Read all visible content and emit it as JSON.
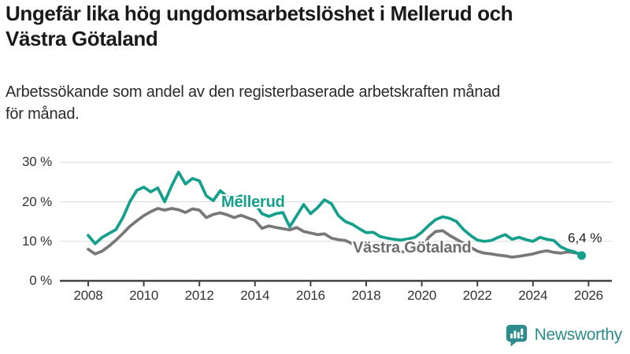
{
  "header": {
    "title_line1": "Ungefär lika hög ungdomsarbetslöshet i Mellerud och",
    "title_line2": "Västra Götaland",
    "subtitle_line1": "Arbetssökande som andel av den registerbaserade arbetskraften månad",
    "subtitle_line2": "för månad."
  },
  "chart_data": {
    "type": "line",
    "unit": "%",
    "grid": true,
    "x_start_year": 2008,
    "x_step_years": 0.25,
    "ylim": [
      0,
      32
    ],
    "y_axis_ticks": [
      {
        "v": 0,
        "label": "0 %"
      },
      {
        "v": 10,
        "label": "10 %"
      },
      {
        "v": 20,
        "label": "20 %"
      },
      {
        "v": 30,
        "label": "30 %"
      }
    ],
    "x_axis_ticks": [
      {
        "v": 2008,
        "label": "2008"
      },
      {
        "v": 2010,
        "label": "2010"
      },
      {
        "v": 2012,
        "label": "2012"
      },
      {
        "v": 2014,
        "label": "2014"
      },
      {
        "v": 2016,
        "label": "2016"
      },
      {
        "v": 2018,
        "label": "2018"
      },
      {
        "v": 2020,
        "label": "2020"
      },
      {
        "v": 2022,
        "label": "2022"
      },
      {
        "v": 2024,
        "label": "2024"
      },
      {
        "v": 2026,
        "label": "2026"
      }
    ],
    "series": [
      {
        "name": "Västra Götaland",
        "color": "#787878",
        "label_color": "#6e6e6e",
        "end_marker": false,
        "values": [
          8.0,
          6.8,
          7.5,
          8.8,
          10.3,
          12.0,
          13.8,
          15.2,
          16.5,
          17.5,
          18.3,
          17.9,
          18.3,
          18.0,
          17.3,
          18.2,
          17.9,
          16.0,
          16.8,
          17.2,
          16.7,
          16.0,
          16.6,
          15.9,
          15.3,
          13.3,
          13.9,
          13.5,
          13.2,
          12.9,
          13.5,
          12.5,
          12.1,
          11.7,
          11.9,
          10.8,
          10.4,
          10.2,
          9.4,
          8.8,
          8.2,
          7.8,
          8.0,
          7.6,
          7.5,
          7.3,
          7.5,
          7.8,
          8.3,
          11.0,
          12.5,
          12.7,
          11.5,
          10.5,
          9.5,
          8.5,
          7.5,
          7.0,
          6.8,
          6.5,
          6.3,
          6.0,
          6.2,
          6.5,
          6.8,
          7.3,
          7.6,
          7.2,
          7.0,
          7.3,
          7.1,
          6.8
        ]
      },
      {
        "name": "Mellerud",
        "color": "#15a08e",
        "label_color": "#15a08e",
        "end_marker": true,
        "end_value": 6.4,
        "end_value_label": "6,4 %",
        "values": [
          11.5,
          9.4,
          11.0,
          12.0,
          13.0,
          16.0,
          20.0,
          22.9,
          23.7,
          22.5,
          23.5,
          20.0,
          24.0,
          27.5,
          24.5,
          25.9,
          25.3,
          21.5,
          20.3,
          22.8,
          21.3,
          20.8,
          21.5,
          20.5,
          19.5,
          17.0,
          16.3,
          17.0,
          17.3,
          13.7,
          16.5,
          19.3,
          17.0,
          18.5,
          20.5,
          19.5,
          16.5,
          15.0,
          14.3,
          13.2,
          12.2,
          12.3,
          11.2,
          10.8,
          10.5,
          10.3,
          10.6,
          11.0,
          12.3,
          14.0,
          15.5,
          16.2,
          15.8,
          15.0,
          13.0,
          11.5,
          10.3,
          10.0,
          10.2,
          11.0,
          11.7,
          10.5,
          11.0,
          10.4,
          10.0,
          11.0,
          10.5,
          10.2,
          8.6,
          7.8,
          7.3,
          6.4
        ]
      }
    ],
    "annotations": [
      {
        "text": "6,4 %",
        "attached_to_series": "Mellerud"
      }
    ],
    "colors": {
      "grid": "#dbdbdb",
      "axis": "#434343",
      "tick_text": "#333333"
    }
  },
  "labels": {
    "mellerud": "Mellerud",
    "vastra_gotaland": "Västra Götaland",
    "end_value": "6,4 %"
  },
  "branding": {
    "wordmark": "Newsworthy",
    "color": "#2e8c8e",
    "icon": "bar-chart-speech-bubble-icon"
  }
}
